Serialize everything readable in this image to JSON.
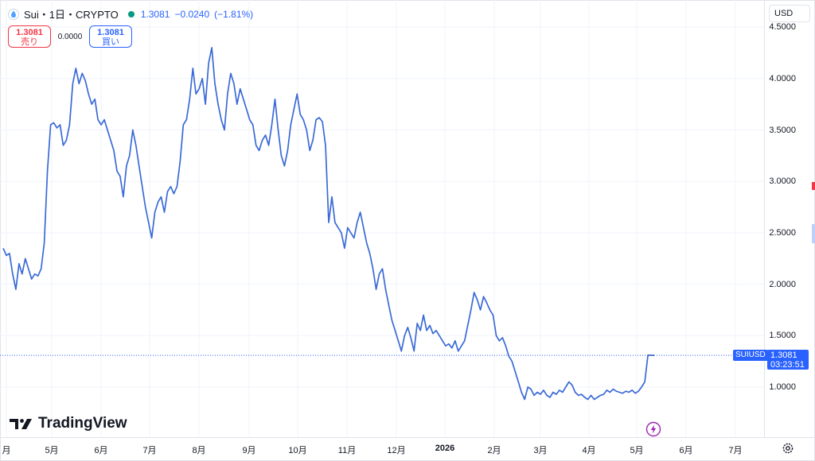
{
  "legend": {
    "symbol_title": "Sui・1日・CRYPTO",
    "last": "1.3081",
    "change": "−0.0240",
    "change_pct": "(−1.81%)",
    "market_status_color": "#089981"
  },
  "trade": {
    "sell_value": "1.3081",
    "sell_label": "売り",
    "spread": "0.0000",
    "buy_value": "1.3081",
    "buy_label": "買い"
  },
  "currency_selector": "USD",
  "watermark": "TradingView",
  "price_tag": {
    "symbol": "SUIUSD",
    "price": "1.3081",
    "countdown": "03:23:51"
  },
  "colors": {
    "line": "#3a6ad6",
    "accent": "#2962ff",
    "sell": "#f23645",
    "grid": "#f0f3fa",
    "flash": "#9c27b0"
  },
  "chart_data": {
    "type": "line",
    "series": [
      {
        "values": [
          2.35,
          2.28,
          2.3,
          2.1,
          1.95,
          2.2,
          2.1,
          2.25,
          2.15,
          2.05,
          2.1,
          2.08,
          2.15,
          2.4,
          3.1,
          3.55,
          3.57,
          3.52,
          3.55,
          3.35,
          3.4,
          3.55,
          3.95,
          4.1,
          3.95,
          4.05,
          3.98,
          3.85,
          3.75,
          3.8,
          3.6,
          3.55,
          3.6,
          3.5,
          3.4,
          3.3,
          3.1,
          3.05,
          2.85,
          3.15,
          3.25,
          3.5,
          3.35,
          3.15,
          2.95,
          2.75,
          2.6,
          2.45,
          2.7,
          2.8,
          2.85,
          2.7,
          2.9,
          2.95,
          2.88,
          2.95,
          3.2,
          3.55,
          3.6,
          3.8,
          4.1,
          3.85,
          3.9,
          4.0,
          3.75,
          4.15,
          4.3,
          3.95,
          3.75,
          3.6,
          3.5,
          3.85,
          4.05,
          3.95,
          3.75,
          3.9,
          3.8,
          3.7,
          3.6,
          3.55,
          3.35,
          3.3,
          3.4,
          3.45,
          3.35,
          3.55,
          3.8,
          3.5,
          3.25,
          3.15,
          3.3,
          3.55,
          3.7,
          3.85,
          3.65,
          3.6,
          3.5,
          3.3,
          3.4,
          3.6,
          3.62,
          3.58,
          3.35,
          2.6,
          2.85,
          2.6,
          2.55,
          2.5,
          2.35,
          2.55,
          2.5,
          2.45,
          2.6,
          2.7,
          2.55,
          2.4,
          2.3,
          2.15,
          1.95,
          2.1,
          2.15,
          1.95,
          1.8,
          1.65,
          1.55,
          1.45,
          1.35,
          1.5,
          1.58,
          1.48,
          1.35,
          1.62,
          1.55,
          1.7,
          1.55,
          1.6,
          1.52,
          1.55,
          1.5,
          1.45,
          1.4,
          1.42,
          1.38,
          1.45,
          1.35,
          1.4,
          1.45,
          1.6,
          1.75,
          1.92,
          1.85,
          1.75,
          1.88,
          1.82,
          1.75,
          1.7,
          1.5,
          1.45,
          1.48,
          1.4,
          1.3,
          1.25,
          1.15,
          1.05,
          0.95,
          0.88,
          1.0,
          0.98,
          0.92,
          0.95,
          0.93,
          0.97,
          0.92,
          0.9,
          0.95,
          0.93,
          0.97,
          0.95,
          1.0,
          1.05,
          1.02,
          0.95,
          0.92,
          0.93,
          0.9,
          0.88,
          0.92,
          0.88,
          0.9,
          0.92,
          0.93,
          0.97,
          0.95,
          0.98,
          0.96,
          0.95,
          0.94,
          0.96,
          0.95,
          0.97,
          0.94,
          0.96,
          1.0,
          1.05,
          1.31,
          1.31,
          1.3081
        ]
      }
    ],
    "x_tick_labels": [
      "月",
      "5月",
      "6月",
      "7月",
      "8月",
      "9月",
      "10月",
      "11月",
      "12月",
      "2026",
      "2月",
      "3月",
      "4月",
      "5月",
      "6月",
      "7月"
    ],
    "y_tick_labels": [
      "4.5000",
      "4.0000",
      "3.5000",
      "3.0000",
      "2.5000",
      "2.0000",
      "1.5000",
      "1.0000"
    ],
    "ylim": [
      0.6,
      4.6
    ],
    "last_value": 1.3081,
    "grid": true,
    "legend_position": "top-left"
  }
}
